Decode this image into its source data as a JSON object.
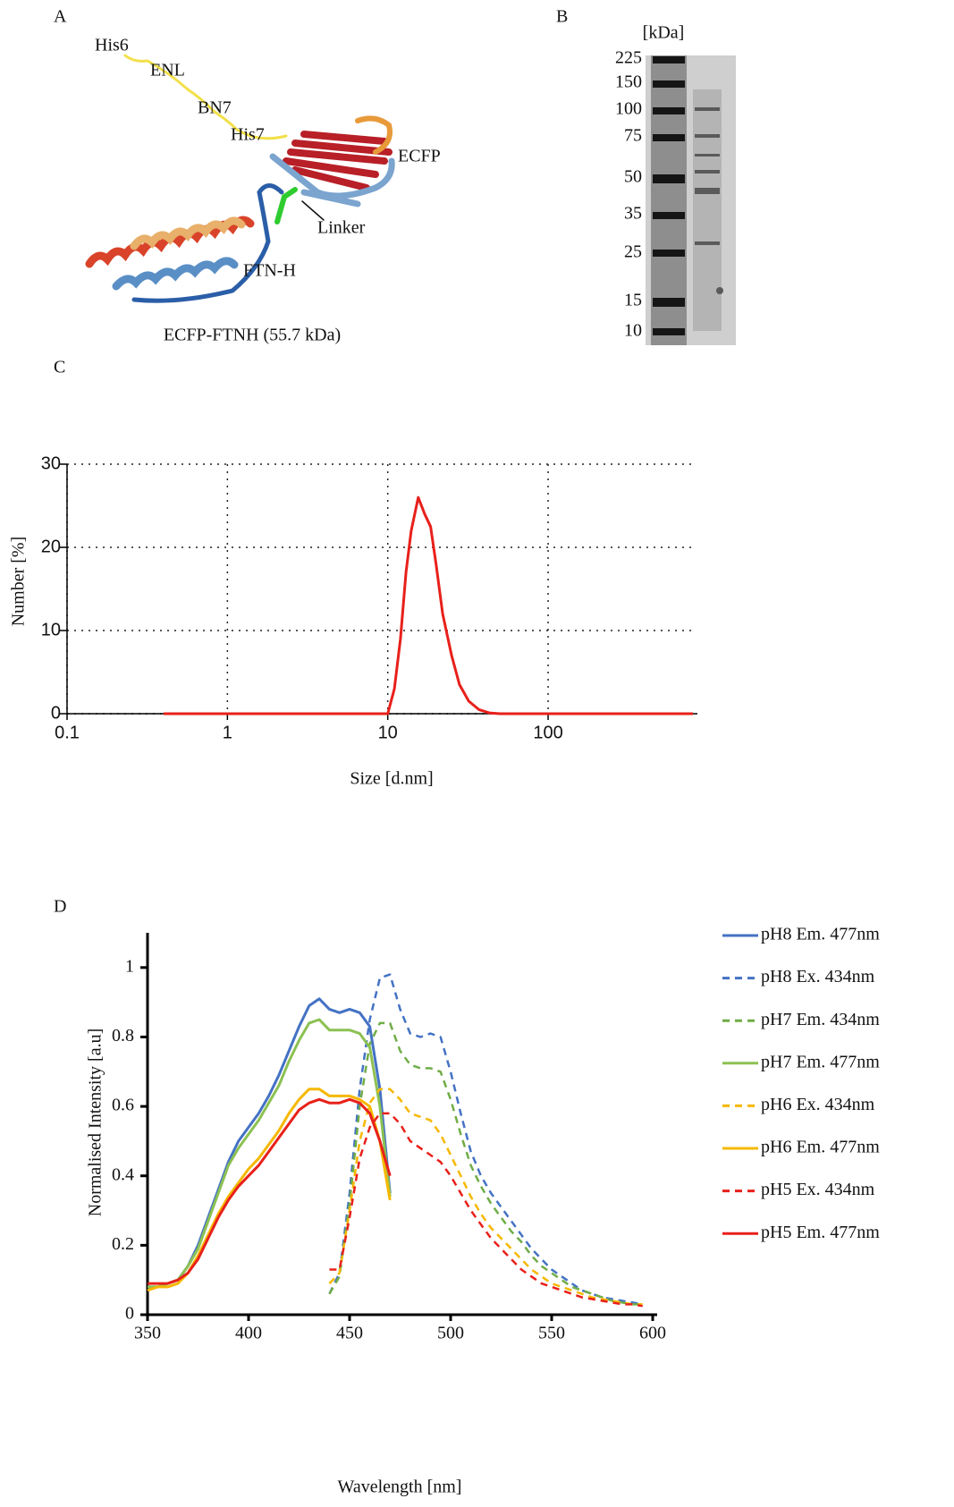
{
  "panel_a": {
    "label": "A",
    "annotations": [
      "His6",
      "ENL",
      "BN7",
      "His7",
      "ECFP",
      "Linker",
      "FTN-H"
    ],
    "caption": "ECFP-FTNH (55.7 kDa)"
  },
  "panel_b": {
    "label": "B",
    "unit": "[kDa]",
    "markers": [
      225,
      150,
      100,
      75,
      50,
      35,
      25,
      15,
      10
    ]
  },
  "chart_data": [
    {
      "type": "line",
      "label": "C",
      "xlabel": "Size [d.nm]",
      "ylabel": "Number [%]",
      "xscale": "log",
      "grid": true,
      "xlim": [
        0.1,
        800
      ],
      "xticks": [
        0.1,
        1,
        10,
        100
      ],
      "ylim": [
        0,
        30
      ],
      "yticks": [
        0,
        10,
        20,
        30
      ],
      "x": [
        0.4,
        10,
        11,
        12,
        13,
        14,
        15.5,
        17,
        18.5,
        20,
        22,
        25,
        28,
        32,
        37,
        43,
        50,
        800
      ],
      "series": [
        {
          "color": "#e8201a",
          "values": [
            0,
            0,
            3,
            9,
            17,
            22,
            26,
            24,
            22.5,
            18,
            12,
            7,
            3.5,
            1.5,
            0.5,
            0.1,
            0,
            0
          ]
        }
      ]
    },
    {
      "type": "line",
      "label": "D",
      "xlabel": "Wavelength  [nm]",
      "ylabel": "Normalised  Intensity  [a.u]",
      "grid": false,
      "legend": "right",
      "xlim": [
        350,
        600
      ],
      "xticks": [
        350,
        400,
        450,
        500,
        550,
        600
      ],
      "ylim": [
        0,
        1.1
      ],
      "yticks": [
        0,
        0.2,
        0.4,
        0.6,
        0.8,
        1
      ],
      "x": [
        350,
        355,
        360,
        365,
        370,
        375,
        380,
        385,
        390,
        395,
        400,
        405,
        410,
        415,
        420,
        425,
        430,
        435,
        440,
        445,
        450,
        455,
        460,
        465,
        470,
        475,
        480,
        485,
        490,
        495,
        500,
        505,
        510,
        515,
        520,
        525,
        530,
        535,
        540,
        545,
        550,
        555,
        560,
        565,
        570,
        575,
        580,
        585,
        590,
        595
      ],
      "series": [
        {
          "name": "pH8 Em. 477nm",
          "color": "#4472c4",
          "dashed": false,
          "values": [
            0.08,
            0.08,
            0.09,
            0.1,
            0.14,
            0.2,
            0.28,
            0.36,
            0.44,
            0.5,
            0.54,
            0.58,
            0.63,
            0.69,
            0.76,
            0.83,
            0.89,
            0.91,
            0.88,
            0.87,
            0.88,
            0.87,
            0.83,
            0.65,
            0.35,
            null,
            null,
            null,
            null,
            null,
            null,
            null,
            null,
            null,
            null,
            null,
            null,
            null,
            null,
            null,
            null,
            null,
            null,
            null,
            null,
            null,
            null,
            null,
            null,
            null
          ]
        },
        {
          "name": "pH8 Ex. 434nm",
          "color": "#4472c4",
          "dashed": true,
          "values": [
            null,
            null,
            null,
            null,
            null,
            null,
            null,
            null,
            null,
            null,
            null,
            null,
            null,
            null,
            null,
            null,
            null,
            null,
            0.06,
            0.12,
            0.35,
            0.65,
            0.85,
            0.97,
            0.98,
            0.88,
            0.81,
            0.8,
            0.81,
            0.8,
            0.7,
            0.58,
            0.47,
            0.4,
            0.35,
            0.31,
            0.27,
            0.23,
            0.19,
            0.16,
            0.13,
            0.11,
            0.09,
            0.07,
            0.06,
            0.05,
            0.045,
            0.04,
            0.035,
            0.03
          ]
        },
        {
          "name": "pH7 Em. 434nm",
          "color": "#70ad47",
          "dashed": true,
          "values": [
            null,
            null,
            null,
            null,
            null,
            null,
            null,
            null,
            null,
            null,
            null,
            null,
            null,
            null,
            null,
            null,
            null,
            null,
            0.06,
            0.11,
            0.32,
            0.6,
            0.78,
            0.84,
            0.84,
            0.76,
            0.72,
            0.71,
            0.71,
            0.7,
            0.62,
            0.52,
            0.43,
            0.37,
            0.32,
            0.28,
            0.24,
            0.21,
            0.17,
            0.14,
            0.12,
            0.1,
            0.08,
            0.07,
            0.06,
            0.05,
            0.04,
            0.035,
            0.03,
            0.03
          ]
        },
        {
          "name": "pH7 Em. 477nm",
          "color": "#8cc152",
          "dashed": false,
          "values": [
            0.08,
            0.08,
            0.09,
            0.1,
            0.14,
            0.19,
            0.27,
            0.35,
            0.43,
            0.48,
            0.52,
            0.56,
            0.61,
            0.66,
            0.73,
            0.79,
            0.84,
            0.85,
            0.82,
            0.82,
            0.82,
            0.81,
            0.77,
            0.6,
            0.34,
            null,
            null,
            null,
            null,
            null,
            null,
            null,
            null,
            null,
            null,
            null,
            null,
            null,
            null,
            null,
            null,
            null,
            null,
            null,
            null,
            null,
            null,
            null,
            null,
            null
          ]
        },
        {
          "name": "pH6 Ex. 434nm",
          "color": "#f5b800",
          "dashed": true,
          "values": [
            null,
            null,
            null,
            null,
            null,
            null,
            null,
            null,
            null,
            null,
            null,
            null,
            null,
            null,
            null,
            null,
            null,
            null,
            0.09,
            0.12,
            0.3,
            0.5,
            0.61,
            0.65,
            0.65,
            0.62,
            0.58,
            0.57,
            0.56,
            0.52,
            0.46,
            0.4,
            0.34,
            0.29,
            0.25,
            0.22,
            0.19,
            0.16,
            0.13,
            0.11,
            0.09,
            0.08,
            0.07,
            0.06,
            0.05,
            0.045,
            0.04,
            0.035,
            0.03,
            0.03
          ]
        },
        {
          "name": "pH6 Em. 477nm",
          "color": "#f5b800",
          "dashed": false,
          "values": [
            0.07,
            0.08,
            0.08,
            0.09,
            0.12,
            0.17,
            0.23,
            0.29,
            0.34,
            0.38,
            0.42,
            0.45,
            0.49,
            0.53,
            0.58,
            0.62,
            0.65,
            0.65,
            0.63,
            0.63,
            0.63,
            0.62,
            0.6,
            0.5,
            0.33,
            null,
            null,
            null,
            null,
            null,
            null,
            null,
            null,
            null,
            null,
            null,
            null,
            null,
            null,
            null,
            null,
            null,
            null,
            null,
            null,
            null,
            null,
            null,
            null,
            null
          ]
        },
        {
          "name": "pH5 Ex. 434nm",
          "color": "#e8201a",
          "dashed": true,
          "values": [
            null,
            null,
            null,
            null,
            null,
            null,
            null,
            null,
            null,
            null,
            null,
            null,
            null,
            null,
            null,
            null,
            null,
            null,
            0.13,
            0.13,
            0.28,
            0.45,
            0.54,
            0.58,
            0.58,
            0.55,
            0.5,
            0.48,
            0.46,
            0.44,
            0.4,
            0.35,
            0.3,
            0.26,
            0.22,
            0.19,
            0.16,
            0.13,
            0.11,
            0.09,
            0.08,
            0.07,
            0.06,
            0.05,
            0.045,
            0.04,
            0.035,
            0.03,
            0.03,
            0.025
          ]
        },
        {
          "name": "pH5 Em. 477nm",
          "color": "#e8201a",
          "dashed": false,
          "values": [
            0.09,
            0.09,
            0.09,
            0.1,
            0.12,
            0.16,
            0.22,
            0.28,
            0.33,
            0.37,
            0.4,
            0.43,
            0.47,
            0.51,
            0.55,
            0.59,
            0.61,
            0.62,
            0.61,
            0.61,
            0.62,
            0.61,
            0.58,
            0.5,
            0.4,
            null,
            null,
            null,
            null,
            null,
            null,
            null,
            null,
            null,
            null,
            null,
            null,
            null,
            null,
            null,
            null,
            null,
            null,
            null,
            null,
            null,
            null,
            null,
            null,
            null
          ]
        }
      ]
    }
  ]
}
